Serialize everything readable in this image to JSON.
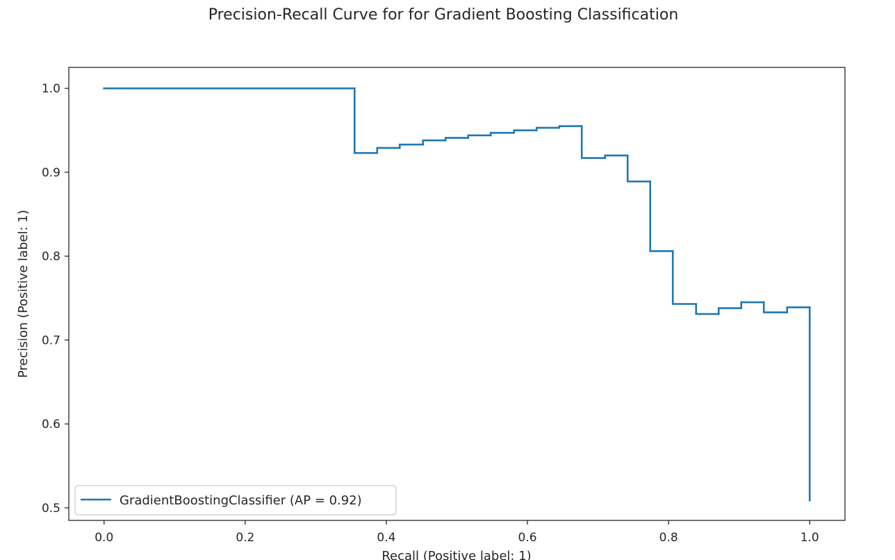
{
  "chart_data": {
    "type": "line",
    "drawstyle": "steps-post",
    "title": "Precision-Recall Curve for for Gradient Boosting Classification",
    "xlabel": "Recall (Positive label: 1)",
    "ylabel": "Precision (Positive label: 1)",
    "xlim": [
      -0.05,
      1.05
    ],
    "ylim": [
      0.485,
      1.025
    ],
    "xticks": [
      0.0,
      0.2,
      0.4,
      0.6,
      0.8,
      1.0
    ],
    "xtick_labels": [
      "0.0",
      "0.2",
      "0.4",
      "0.6",
      "0.8",
      "1.0"
    ],
    "yticks": [
      0.5,
      0.6,
      0.7,
      0.8,
      0.9,
      1.0
    ],
    "ytick_labels": [
      "0.5",
      "0.6",
      "0.7",
      "0.8",
      "0.9",
      "1.0"
    ],
    "grid": false,
    "legend": {
      "position": "lower-left",
      "entries": [
        "GradientBoostingClassifier (AP = 0.92)"
      ]
    },
    "series": [
      {
        "name": "GradientBoostingClassifier (AP = 0.92)",
        "color": "#1f77b4",
        "points": [
          [
            1.0,
            0.509
          ],
          [
            1.0,
            0.739
          ],
          [
            0.968,
            0.733
          ],
          [
            0.935,
            0.745
          ],
          [
            0.903,
            0.738
          ],
          [
            0.871,
            0.731
          ],
          [
            0.839,
            0.743
          ],
          [
            0.806,
            0.806
          ],
          [
            0.774,
            0.889
          ],
          [
            0.742,
            0.92
          ],
          [
            0.71,
            0.917
          ],
          [
            0.677,
            0.955
          ],
          [
            0.645,
            0.953
          ],
          [
            0.613,
            0.95
          ],
          [
            0.581,
            0.947
          ],
          [
            0.548,
            0.944
          ],
          [
            0.516,
            0.941
          ],
          [
            0.484,
            0.938
          ],
          [
            0.452,
            0.933
          ],
          [
            0.419,
            0.929
          ],
          [
            0.387,
            0.923
          ],
          [
            0.355,
            1.0
          ],
          [
            0.0,
            1.0
          ]
        ]
      }
    ]
  }
}
